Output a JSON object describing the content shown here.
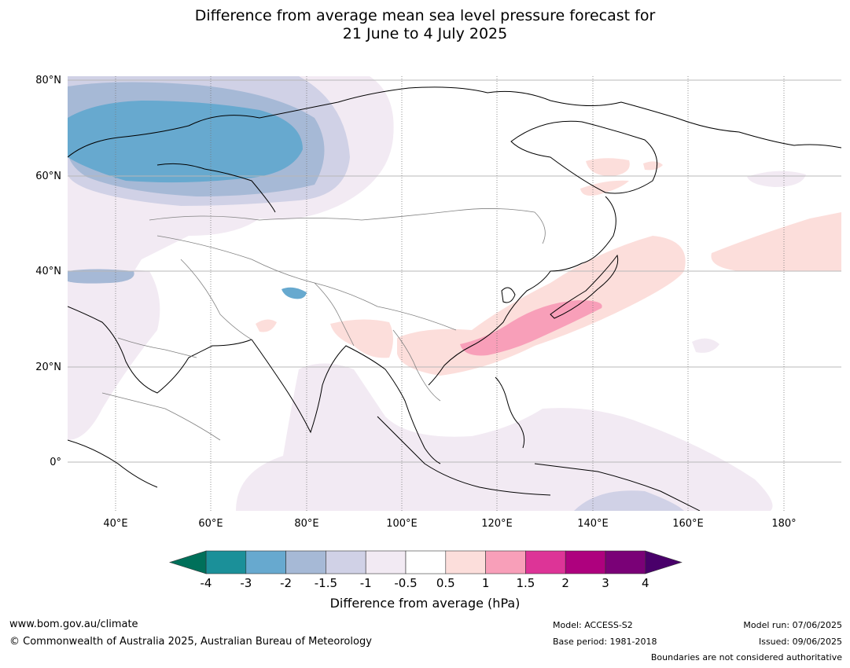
{
  "title": {
    "line1": "Difference from average mean sea level pressure forecast for",
    "line2": "21 June to 4 July 2025"
  },
  "axes": {
    "lat_labels": [
      "80°N",
      "60°N",
      "40°N",
      "20°N",
      "0°"
    ],
    "lon_labels": [
      "40°E",
      "60°E",
      "80°E",
      "100°E",
      "120°E",
      "140°E",
      "160°E",
      "180°"
    ]
  },
  "colorbar": {
    "ticks": [
      "-4",
      "-3",
      "-2",
      "-1.5",
      "-1",
      "-0.5",
      "0.5",
      "1",
      "1.5",
      "2",
      "3",
      "4"
    ],
    "colors": {
      "under": "#00705a",
      "bins": [
        "#1b9099",
        "#67a9cf",
        "#a6b9d6",
        "#d0d1e6",
        "#f2eaf3",
        "#ffffff",
        "#fcdedb",
        "#f89fb9",
        "#dd3497",
        "#ae017e",
        "#7a0177"
      ],
      "over": "#49006a"
    },
    "label": "Difference from average (hPa)"
  },
  "footer": {
    "website": "www.bom.gov.au/climate",
    "copyright": "© Commonwealth of Australia 2025, Australian Bureau of Meteorology",
    "model": "Model: ACCESS-S2",
    "base_period": "Base period: 1981-2018",
    "model_run": "Model run: 07/06/2025",
    "issued": "Issued: 09/06/2025",
    "disclaimer": "Boundaries are not considered authoritative"
  }
}
